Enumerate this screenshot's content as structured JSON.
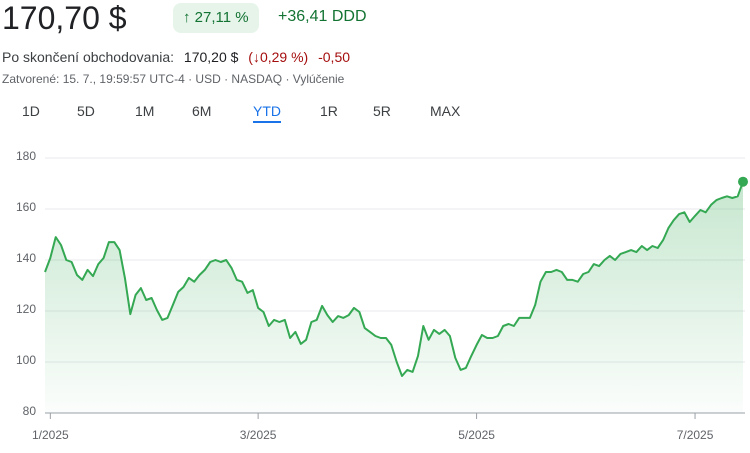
{
  "header": {
    "price": "170,70 $",
    "change_pct": "↑ 27,11 %",
    "change_abs": "+36,41 DDD"
  },
  "after_hours": {
    "label": "Po skončení obchodovania:",
    "price": "170,20 $",
    "change_pct": "(↓0,29 %)",
    "change_abs": "-0,50"
  },
  "status": "Zatvorené: 15. 7., 19:59:57 UTC-4 · USD · NASDAQ · Vylúčenie",
  "tabs": [
    "1D",
    "5D",
    "1M",
    "6M",
    "YTD",
    "1R",
    "5R",
    "MAX"
  ],
  "selected_tab": 4,
  "chart_data": {
    "type": "area",
    "color": "#34a853",
    "values": [
      135.3,
      140.8,
      149,
      145.9,
      140,
      139.2,
      134.1,
      132.2,
      136.1,
      133.7,
      138.4,
      140.8,
      147,
      147,
      143.9,
      133,
      118.8,
      126.3,
      129,
      124.3,
      125.1,
      120.4,
      116.5,
      117.3,
      122.4,
      127.5,
      129.4,
      133,
      131.5,
      134.1,
      136.1,
      139.2,
      140,
      139.2,
      140,
      136.9,
      132.2,
      131.5,
      127.1,
      128.2,
      121.2,
      119.6,
      114.1,
      116.5,
      115.7,
      116.5,
      109.4,
      111.8,
      107.1,
      108.7,
      115.7,
      116.5,
      122,
      118.4,
      115.7,
      118,
      117.3,
      118.4,
      121.2,
      119.6,
      113.3,
      111.8,
      110.2,
      109.4,
      109.4,
      106.7,
      100,
      94.5,
      96.9,
      96.1,
      102.4,
      114.1,
      108.7,
      112.6,
      111,
      112.6,
      110.2,
      101.6,
      96.9,
      97.7,
      102.4,
      106.7,
      110.6,
      109.4,
      109.4,
      110.2,
      114.1,
      114.9,
      114.1,
      117.3,
      117.3,
      117.3,
      122.4,
      131.5,
      135.3,
      135.3,
      136.1,
      135.3,
      132.2,
      132.2,
      131.5,
      134.5,
      135.3,
      138.4,
      137.6,
      140,
      141.6,
      140,
      142.4,
      143.1,
      143.9,
      143.1,
      145.5,
      143.9,
      145.5,
      144.7,
      147.8,
      152.5,
      155.6,
      158,
      158.7,
      154.9,
      157.3,
      159.6,
      158.7,
      161.6,
      163.5,
      164.3,
      165,
      164.3,
      165,
      170.7
    ],
    "xlim": [
      0,
      131
    ],
    "xticks": [
      {
        "value": 1,
        "label": "1/2025"
      },
      {
        "value": 40,
        "label": "3/2025"
      },
      {
        "value": 81,
        "label": "5/2025"
      },
      {
        "value": 122,
        "label": "7/2025"
      }
    ],
    "ylim": [
      80,
      180
    ],
    "yticks": [
      80,
      100,
      120,
      140,
      160,
      180
    ],
    "grid": true
  }
}
